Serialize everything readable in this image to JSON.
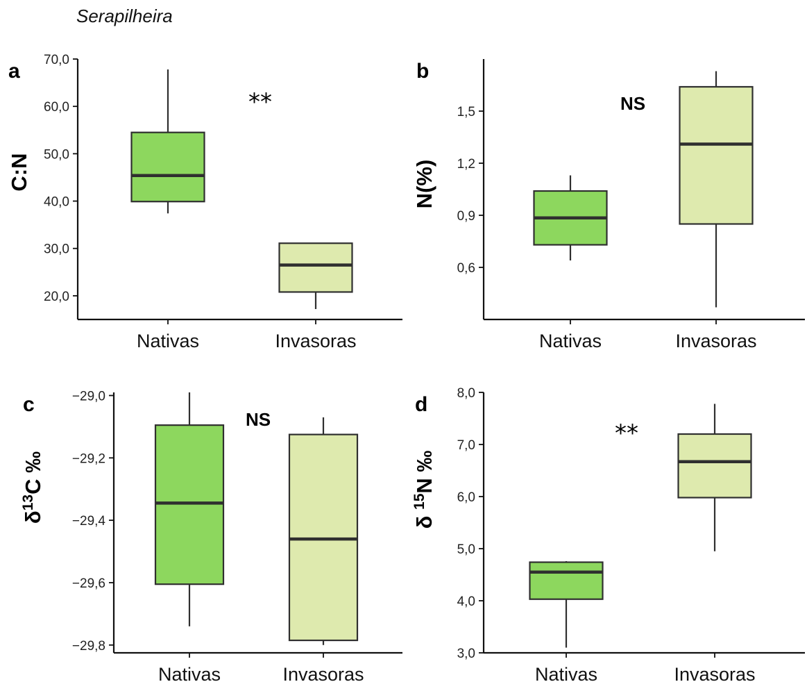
{
  "figure_title": "Serapilheira",
  "colors": {
    "nativas_fill": "#8DD75E",
    "invasoras_fill": "#DEEAAE",
    "stroke": "#2f2f2f",
    "axis": "#111111"
  },
  "chart_data": [
    {
      "id": "a",
      "panel_label": "a",
      "type": "boxplot",
      "ylabel": "C:N",
      "ylabel_sup": "",
      "ylabel_post": "",
      "ylim": [
        15.0,
        70.0
      ],
      "yticks": [
        20.0,
        30.0,
        40.0,
        50.0,
        60.0,
        70.0
      ],
      "ytick_labels": [
        "20,0",
        "30,0",
        "40,0",
        "50,0",
        "60,0",
        "70,0"
      ],
      "significance": "**",
      "categories": [
        "Nativas",
        "Invasoras"
      ],
      "boxes": [
        {
          "name": "Nativas",
          "whisker_low": 37.4,
          "q1": 39.9,
          "median": 45.4,
          "q3": 54.5,
          "whisker_high": 67.8
        },
        {
          "name": "Invasoras",
          "whisker_low": 17.2,
          "q1": 20.8,
          "median": 26.5,
          "q3": 31.1,
          "whisker_high": 31.1
        }
      ]
    },
    {
      "id": "b",
      "panel_label": "b",
      "type": "boxplot",
      "ylabel": "N(%)",
      "ylabel_sup": "",
      "ylabel_post": "",
      "ylim": [
        0.3,
        1.8
      ],
      "yticks": [
        0.6,
        0.9,
        1.2,
        1.5
      ],
      "ytick_labels": [
        "0,6",
        "0,9",
        "1,2",
        "1,5"
      ],
      "significance": "NS",
      "categories": [
        "Nativas",
        "Invasoras"
      ],
      "boxes": [
        {
          "name": "Nativas",
          "whisker_low": 0.64,
          "q1": 0.73,
          "median": 0.885,
          "q3": 1.04,
          "whisker_high": 1.13
        },
        {
          "name": "Invasoras",
          "whisker_low": 0.37,
          "q1": 0.85,
          "median": 1.31,
          "q3": 1.64,
          "whisker_high": 1.73
        }
      ]
    },
    {
      "id": "c",
      "panel_label": "c",
      "type": "boxplot",
      "ylabel": "δ",
      "ylabel_sup": "13",
      "ylabel_post": "C ‰",
      "ylim": [
        -29.825,
        -28.99
      ],
      "yticks": [
        -29.8,
        -29.6,
        -29.4,
        -29.2,
        -29.0
      ],
      "ytick_labels": [
        "−29,8",
        "−29,6",
        "−29,4",
        "−29,2",
        "−29,0"
      ],
      "significance": "NS",
      "categories": [
        "Nativas",
        "Invasoras"
      ],
      "boxes": [
        {
          "name": "Nativas",
          "whisker_low": -29.74,
          "q1": -29.605,
          "median": -29.345,
          "q3": -29.095,
          "whisker_high": -28.99
        },
        {
          "name": "Invasoras",
          "whisker_low": -29.8,
          "q1": -29.785,
          "median": -29.46,
          "q3": -29.125,
          "whisker_high": -29.07
        }
      ]
    },
    {
      "id": "d",
      "panel_label": "d",
      "type": "boxplot",
      "ylabel": "δ ",
      "ylabel_sup": "15",
      "ylabel_post": "N ‰",
      "ylim": [
        3.0,
        8.0
      ],
      "yticks": [
        3.0,
        4.0,
        5.0,
        6.0,
        7.0,
        8.0
      ],
      "ytick_labels": [
        "3,0",
        "4,0",
        "5,0",
        "6,0",
        "7,0",
        "8,0"
      ],
      "significance": "**",
      "categories": [
        "Nativas",
        "Invasoras"
      ],
      "boxes": [
        {
          "name": "Nativas",
          "whisker_low": 3.1,
          "q1": 4.03,
          "median": 4.55,
          "q3": 4.74,
          "whisker_high": 4.76
        },
        {
          "name": "Invasoras",
          "whisker_low": 4.95,
          "q1": 5.98,
          "median": 6.67,
          "q3": 7.2,
          "whisker_high": 7.78
        }
      ]
    }
  ]
}
